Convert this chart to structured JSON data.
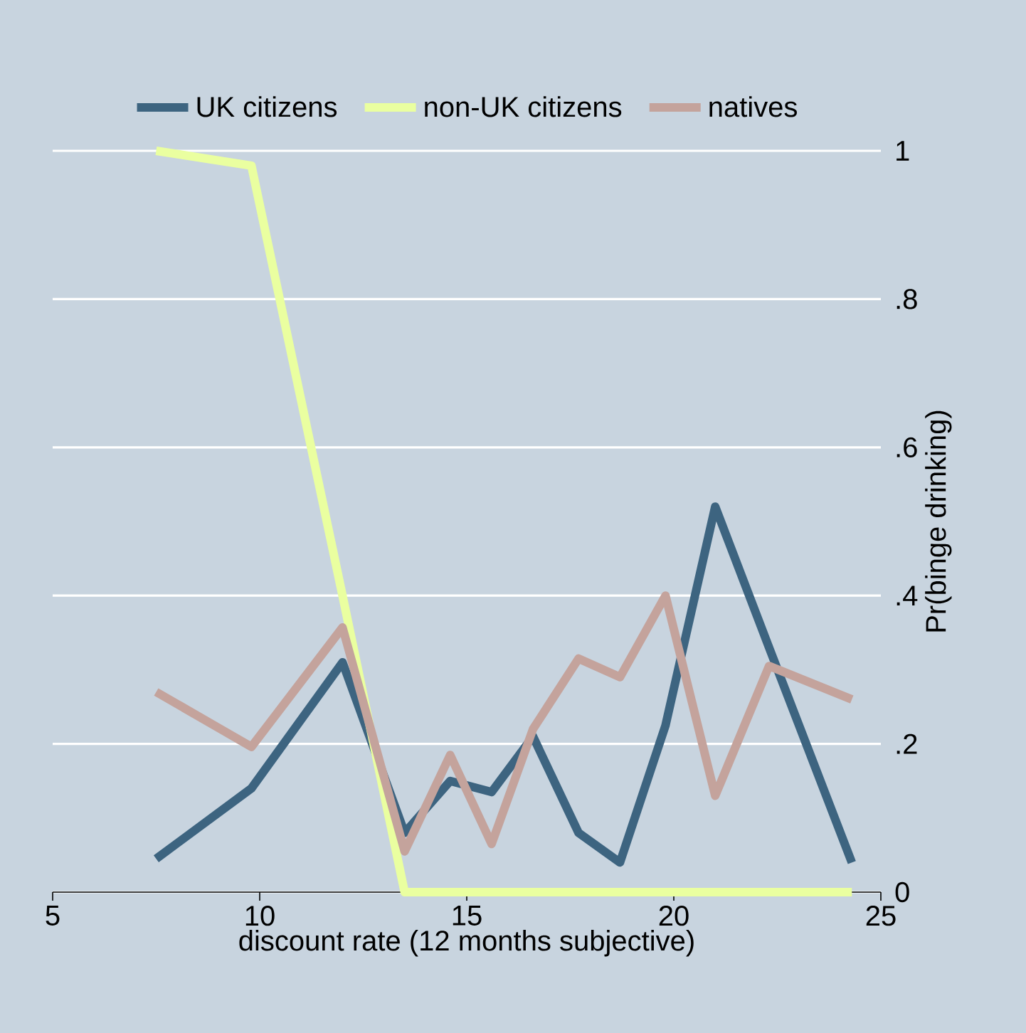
{
  "chart_data": {
    "type": "line",
    "xlabel": "discount rate (12 months subjective)",
    "ylabel": "Pr(binge drinking)",
    "x": [
      7.5,
      9.8,
      12,
      13.5,
      14.6,
      15.6,
      16.6,
      17.7,
      18.7,
      19.8,
      21,
      22.3,
      24.3
    ],
    "series": [
      {
        "name": "UK citizens",
        "color": "#3d6480",
        "values": [
          0.045,
          0.14,
          0.31,
          0.08,
          0.15,
          0.135,
          0.21,
          0.08,
          0.04,
          0.225,
          0.52,
          0.33,
          0.04
        ]
      },
      {
        "name": "non-UK citizens",
        "color": "#eaffa0",
        "values": [
          1.0,
          0.98,
          0.4,
          0,
          0,
          0,
          0,
          0,
          0,
          0,
          0,
          0,
          0
        ]
      },
      {
        "name": "natives",
        "color": "#c4a39c",
        "values": [
          0.27,
          0.196,
          0.357,
          0.055,
          0.185,
          0.065,
          0.22,
          0.315,
          0.29,
          0.4,
          0.13,
          0.305,
          0.26
        ]
      }
    ],
    "xlim": [
      5,
      25
    ],
    "xticks": [
      5,
      10,
      15,
      20,
      25
    ],
    "ylim": [
      0,
      1
    ],
    "yticks": [
      {
        "value": 0,
        "label": "0"
      },
      {
        "value": 0.2,
        "label": ".2"
      },
      {
        "value": 0.4,
        "label": ".4"
      },
      {
        "value": 0.6,
        "label": ".6"
      },
      {
        "value": 0.8,
        "label": ".8"
      },
      {
        "value": 1,
        "label": "1"
      }
    ],
    "grid": "y",
    "legend": "top",
    "marker": "none",
    "line_style": "solid"
  }
}
